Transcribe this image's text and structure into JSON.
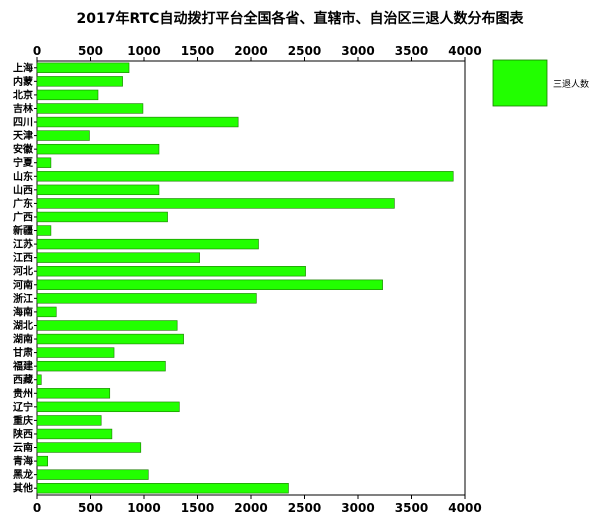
{
  "chart_data": {
    "type": "bar",
    "orientation": "horizontal",
    "title": "2017年RTC自动拨打平台全国各省、直辖市、自治区三退人数分布图表",
    "xlabel": "",
    "ylabel": "",
    "xlim": [
      0,
      4000
    ],
    "xticks": [
      0,
      500,
      1000,
      1500,
      2000,
      2500,
      3000,
      3500,
      4000
    ],
    "tick_labels": [
      "0",
      "500",
      "1000",
      "1500",
      "2000",
      "2500",
      "3000",
      "3500",
      "4000"
    ],
    "grid": false,
    "legend_position": "right",
    "colors": {
      "bar": "#22ff00",
      "bar_edge": "#1a7a00"
    },
    "categories": [
      "上海",
      "内蒙",
      "北京",
      "吉林",
      "四川",
      "天津",
      "安徽",
      "宁夏",
      "山东",
      "山西",
      "广东",
      "广西",
      "新疆",
      "江苏",
      "江西",
      "河北",
      "河南",
      "浙江",
      "海南",
      "湖北",
      "湖南",
      "甘肃",
      "福建",
      "西藏",
      "贵州",
      "辽宁",
      "重庆",
      "陕西",
      "云南",
      "青海",
      "黑龙",
      "其他"
    ],
    "series": [
      {
        "name": "三退人数",
        "values": [
          860,
          800,
          570,
          990,
          1880,
          490,
          1140,
          130,
          3890,
          1140,
          3340,
          1220,
          130,
          2070,
          1520,
          2510,
          3230,
          2050,
          180,
          1310,
          1370,
          720,
          1200,
          40,
          680,
          1330,
          600,
          700,
          970,
          100,
          1040,
          2350
        ]
      }
    ]
  }
}
